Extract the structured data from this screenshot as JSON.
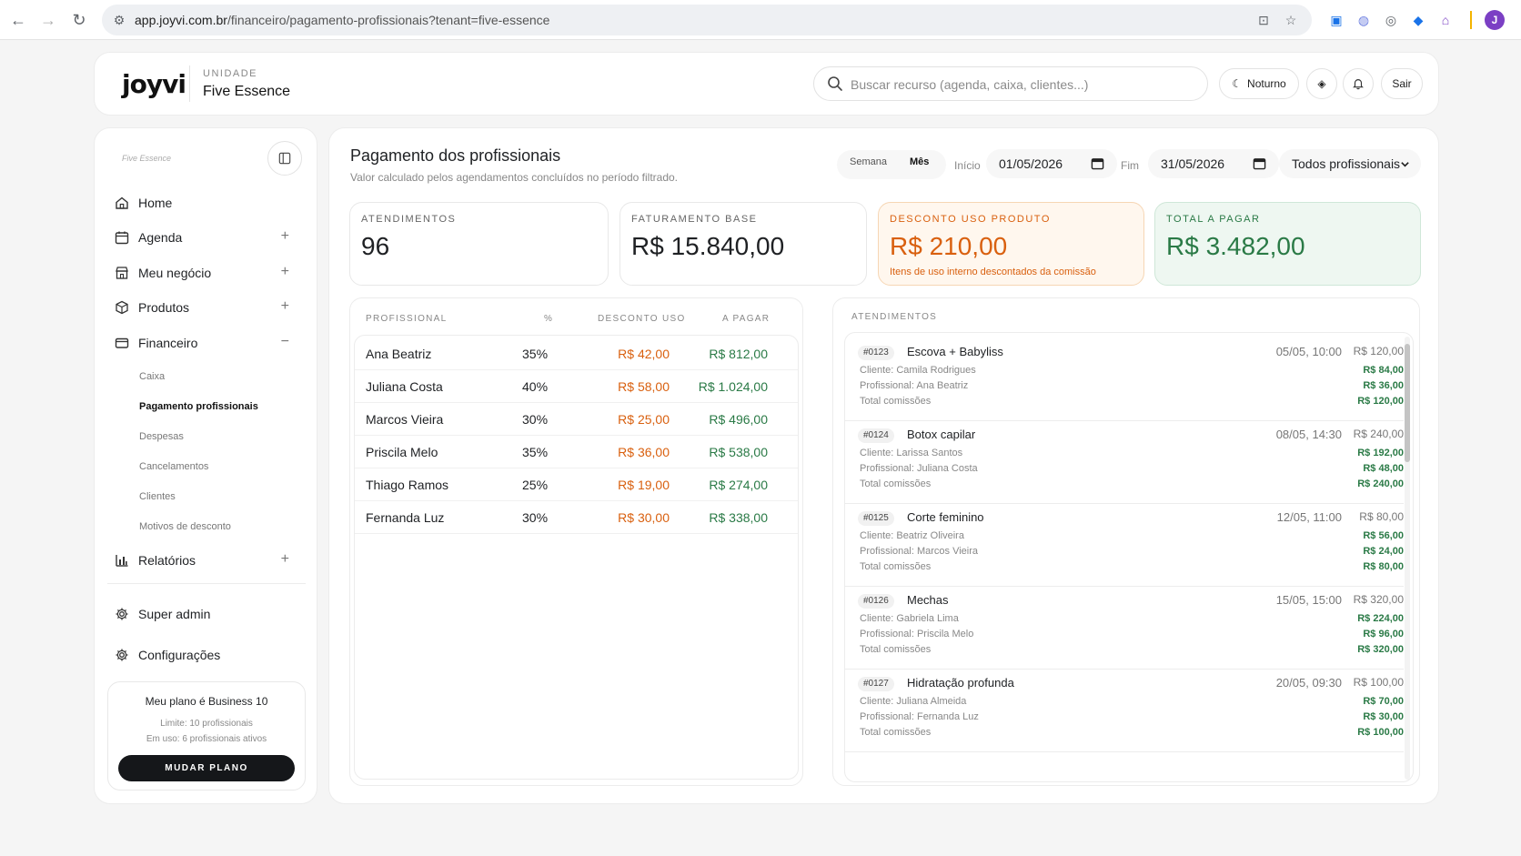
{
  "browser": {
    "url_host": "app.joyvi.com.br",
    "url_path": "/financeiro/pagamento-profissionais?tenant=five-essence",
    "profile_initial": "J"
  },
  "header": {
    "logo": "joyvi",
    "unit_label": "UNIDADE",
    "unit_name": "Five Essence",
    "search_placeholder": "Buscar recurso (agenda, caixa, clientes...)",
    "night_label": "Noturno",
    "exit_label": "Sair"
  },
  "sidebar": {
    "brand": "Five Essence",
    "items": [
      {
        "label": "Home",
        "icon": "home-icon"
      },
      {
        "label": "Agenda",
        "icon": "calendar-icon",
        "expand": "+"
      },
      {
        "label": "Meu negócio",
        "icon": "store-icon",
        "expand": "+"
      },
      {
        "label": "Produtos",
        "icon": "box-icon",
        "expand": "+"
      },
      {
        "label": "Financeiro",
        "icon": "wallet-icon",
        "expand": "−"
      }
    ],
    "subitems": [
      {
        "label": "Caixa",
        "active": false
      },
      {
        "label": "Pagamento profissionais",
        "active": true
      },
      {
        "label": "Despesas",
        "active": false
      },
      {
        "label": "Cancelamentos",
        "active": false
      },
      {
        "label": "Clientes",
        "active": false
      },
      {
        "label": "Motivos de desconto",
        "active": false
      }
    ],
    "reports": {
      "label": "Relatórios",
      "expand": "+"
    },
    "admin": "Super admin",
    "settings": "Configurações",
    "plan": {
      "title": "Meu plano é Business 10",
      "limit": "Limite: 10 profissionais",
      "in_use": "Em uso: 6 profissionais ativos",
      "button": "MUDAR PLANO"
    }
  },
  "main": {
    "title": "Pagamento dos profissionais",
    "subtitle": "Valor calculado pelos agendamentos concluídos no período filtrado.",
    "period": {
      "week": "Semana",
      "month": "Mês"
    },
    "start_label": "Início",
    "start_date": "01/05/2026",
    "end_label": "Fim",
    "end_date": "31/05/2026",
    "professional_filter": "Todos profissionais",
    "kpis": {
      "appointments": {
        "label": "ATENDIMENTOS",
        "value": "96"
      },
      "base": {
        "label": "FATURAMENTO BASE",
        "value": "R$ 15.840,00"
      },
      "discount": {
        "label": "DESCONTO USO PRODUTO",
        "value": "R$ 210,00",
        "note": "Itens de uso interno descontados da comissão"
      },
      "total": {
        "label": "TOTAL A PAGAR",
        "value": "R$ 3.482,00"
      }
    },
    "table": {
      "headers": {
        "professional": "PROFISSIONAL",
        "percent": "%",
        "discount": "DESCONTO USO",
        "pay": "A PAGAR"
      },
      "rows": [
        {
          "name": "Ana Beatriz",
          "percent": "35%",
          "discount": "R$ 42,00",
          "pay": "R$ 812,00"
        },
        {
          "name": "Juliana Costa",
          "percent": "40%",
          "discount": "R$ 58,00",
          "pay": "R$ 1.024,00"
        },
        {
          "name": "Marcos Vieira",
          "percent": "30%",
          "discount": "R$ 25,00",
          "pay": "R$ 496,00"
        },
        {
          "name": "Priscila Melo",
          "percent": "35%",
          "discount": "R$ 36,00",
          "pay": "R$ 538,00"
        },
        {
          "name": "Thiago Ramos",
          "percent": "25%",
          "discount": "R$ 19,00",
          "pay": "R$ 274,00"
        },
        {
          "name": "Fernanda Luz",
          "percent": "30%",
          "discount": "R$ 30,00",
          "pay": "R$ 338,00"
        }
      ]
    },
    "appointments": {
      "title": "ATENDIMENTOS",
      "items": [
        {
          "id": "#0123",
          "service": "Escova + Babyliss",
          "date": "05/05, 10:00",
          "total": "R$ 120,00",
          "client": "Cliente: Camila Rodrigues",
          "client_amount": "R$ 84,00",
          "professional": "Profissional: Ana Beatriz",
          "professional_amount": "R$ 36,00",
          "commission_label": "Total comissões",
          "commission_amount": "R$ 120,00"
        },
        {
          "id": "#0124",
          "service": "Botox capilar",
          "date": "08/05, 14:30",
          "total": "R$ 240,00",
          "client": "Cliente: Larissa Santos",
          "client_amount": "R$ 192,00",
          "professional": "Profissional: Juliana Costa",
          "professional_amount": "R$ 48,00",
          "commission_label": "Total comissões",
          "commission_amount": "R$ 240,00"
        },
        {
          "id": "#0125",
          "service": "Corte feminino",
          "date": "12/05, 11:00",
          "total": "R$ 80,00",
          "client": "Cliente: Beatriz Oliveira",
          "client_amount": "R$ 56,00",
          "professional": "Profissional: Marcos Vieira",
          "professional_amount": "R$ 24,00",
          "commission_label": "Total comissões",
          "commission_amount": "R$ 80,00"
        },
        {
          "id": "#0126",
          "service": "Mechas",
          "date": "15/05, 15:00",
          "total": "R$ 320,00",
          "client": "Cliente: Gabriela Lima",
          "client_amount": "R$ 224,00",
          "professional": "Profissional: Priscila Melo",
          "professional_amount": "R$ 96,00",
          "commission_label": "Total comissões",
          "commission_amount": "R$ 320,00"
        },
        {
          "id": "#0127",
          "service": "Hidratação profunda",
          "date": "20/05, 09:30",
          "total": "R$ 100,00",
          "client": "Cliente: Juliana Almeida",
          "client_amount": "R$ 70,00",
          "professional": "Profissional: Fernanda Luz",
          "professional_amount": "R$ 30,00",
          "commission_label": "Total comissões",
          "commission_amount": "R$ 100,00"
        }
      ]
    }
  },
  "colors": {
    "orange": "#d9600f",
    "green": "#2a7a46",
    "discount_bg": "#fff7ee",
    "discount_border": "#f6d6b4",
    "total_bg": "#eef7f1",
    "total_border": "#cfe7d8"
  }
}
